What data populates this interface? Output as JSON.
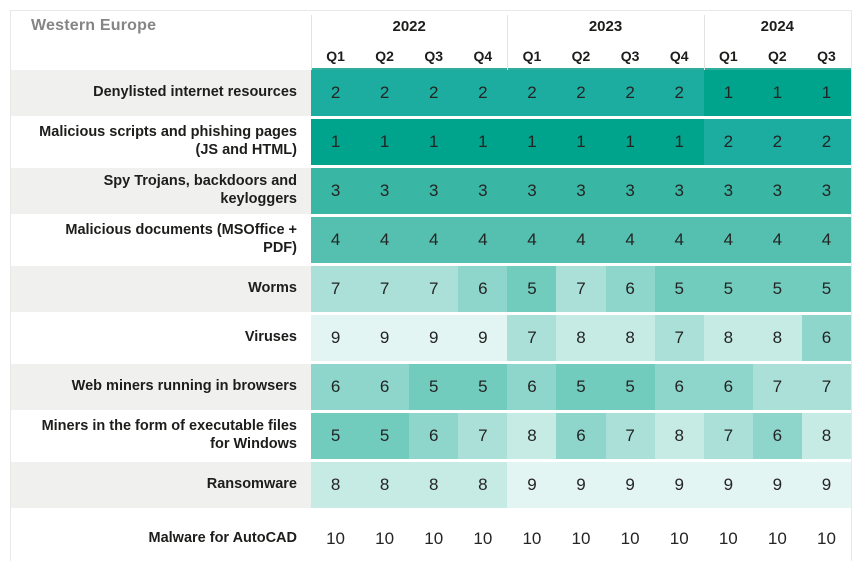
{
  "title": "Western Europe",
  "colors": {
    "accent_rule": "#2fae9b",
    "header_divider": "#e3e3e2",
    "row_label_stripe_bg": "#f0f0ee",
    "row_label_plain_bg": "#ffffff",
    "title_color": "#858585",
    "rank_scale": {
      "1": "#00a38b",
      "2": "#1cada0",
      "3": "#39b6a4",
      "4": "#55bfb0",
      "5": "#71ccbe",
      "6": "#8ed6cb",
      "7": "#aae0d8",
      "8": "#c6ebe5",
      "9": "#e3f5f2",
      "10": "#ffffff"
    }
  },
  "chart_data": {
    "type": "heatmap",
    "title": "Western Europe",
    "color_rule": "cell shade encodes rank: 1 darkest teal, 10 white",
    "column_groups": [
      {
        "year": "2022",
        "quarters": [
          "Q1",
          "Q2",
          "Q3",
          "Q4"
        ]
      },
      {
        "year": "2023",
        "quarters": [
          "Q1",
          "Q2",
          "Q3",
          "Q4"
        ]
      },
      {
        "year": "2024",
        "quarters": [
          "Q1",
          "Q2",
          "Q3"
        ]
      }
    ],
    "rows": [
      {
        "label": "Denylisted internet resources",
        "values": [
          2,
          2,
          2,
          2,
          2,
          2,
          2,
          2,
          1,
          1,
          1
        ]
      },
      {
        "label": "Malicious scripts and phishing pages (JS and HTML)",
        "values": [
          1,
          1,
          1,
          1,
          1,
          1,
          1,
          1,
          2,
          2,
          2
        ]
      },
      {
        "label": "Spy Trojans, backdoors and keyloggers",
        "values": [
          3,
          3,
          3,
          3,
          3,
          3,
          3,
          3,
          3,
          3,
          3
        ]
      },
      {
        "label": "Malicious documents (MSOffice + PDF)",
        "values": [
          4,
          4,
          4,
          4,
          4,
          4,
          4,
          4,
          4,
          4,
          4
        ]
      },
      {
        "label": "Worms",
        "values": [
          7,
          7,
          7,
          6,
          5,
          7,
          6,
          5,
          5,
          5,
          5
        ]
      },
      {
        "label": "Viruses",
        "values": [
          9,
          9,
          9,
          9,
          7,
          8,
          8,
          7,
          8,
          8,
          6
        ]
      },
      {
        "label": "Web miners running in browsers",
        "values": [
          6,
          6,
          5,
          5,
          6,
          5,
          5,
          6,
          6,
          7,
          7
        ]
      },
      {
        "label": "Miners in the form of executable files for Windows",
        "values": [
          5,
          5,
          6,
          7,
          8,
          6,
          7,
          8,
          7,
          6,
          8
        ]
      },
      {
        "label": "Ransomware",
        "values": [
          8,
          8,
          8,
          8,
          9,
          9,
          9,
          9,
          9,
          9,
          9
        ]
      },
      {
        "label": "Malware for AutoCAD",
        "values": [
          10,
          10,
          10,
          10,
          10,
          10,
          10,
          10,
          10,
          10,
          10
        ]
      }
    ]
  }
}
